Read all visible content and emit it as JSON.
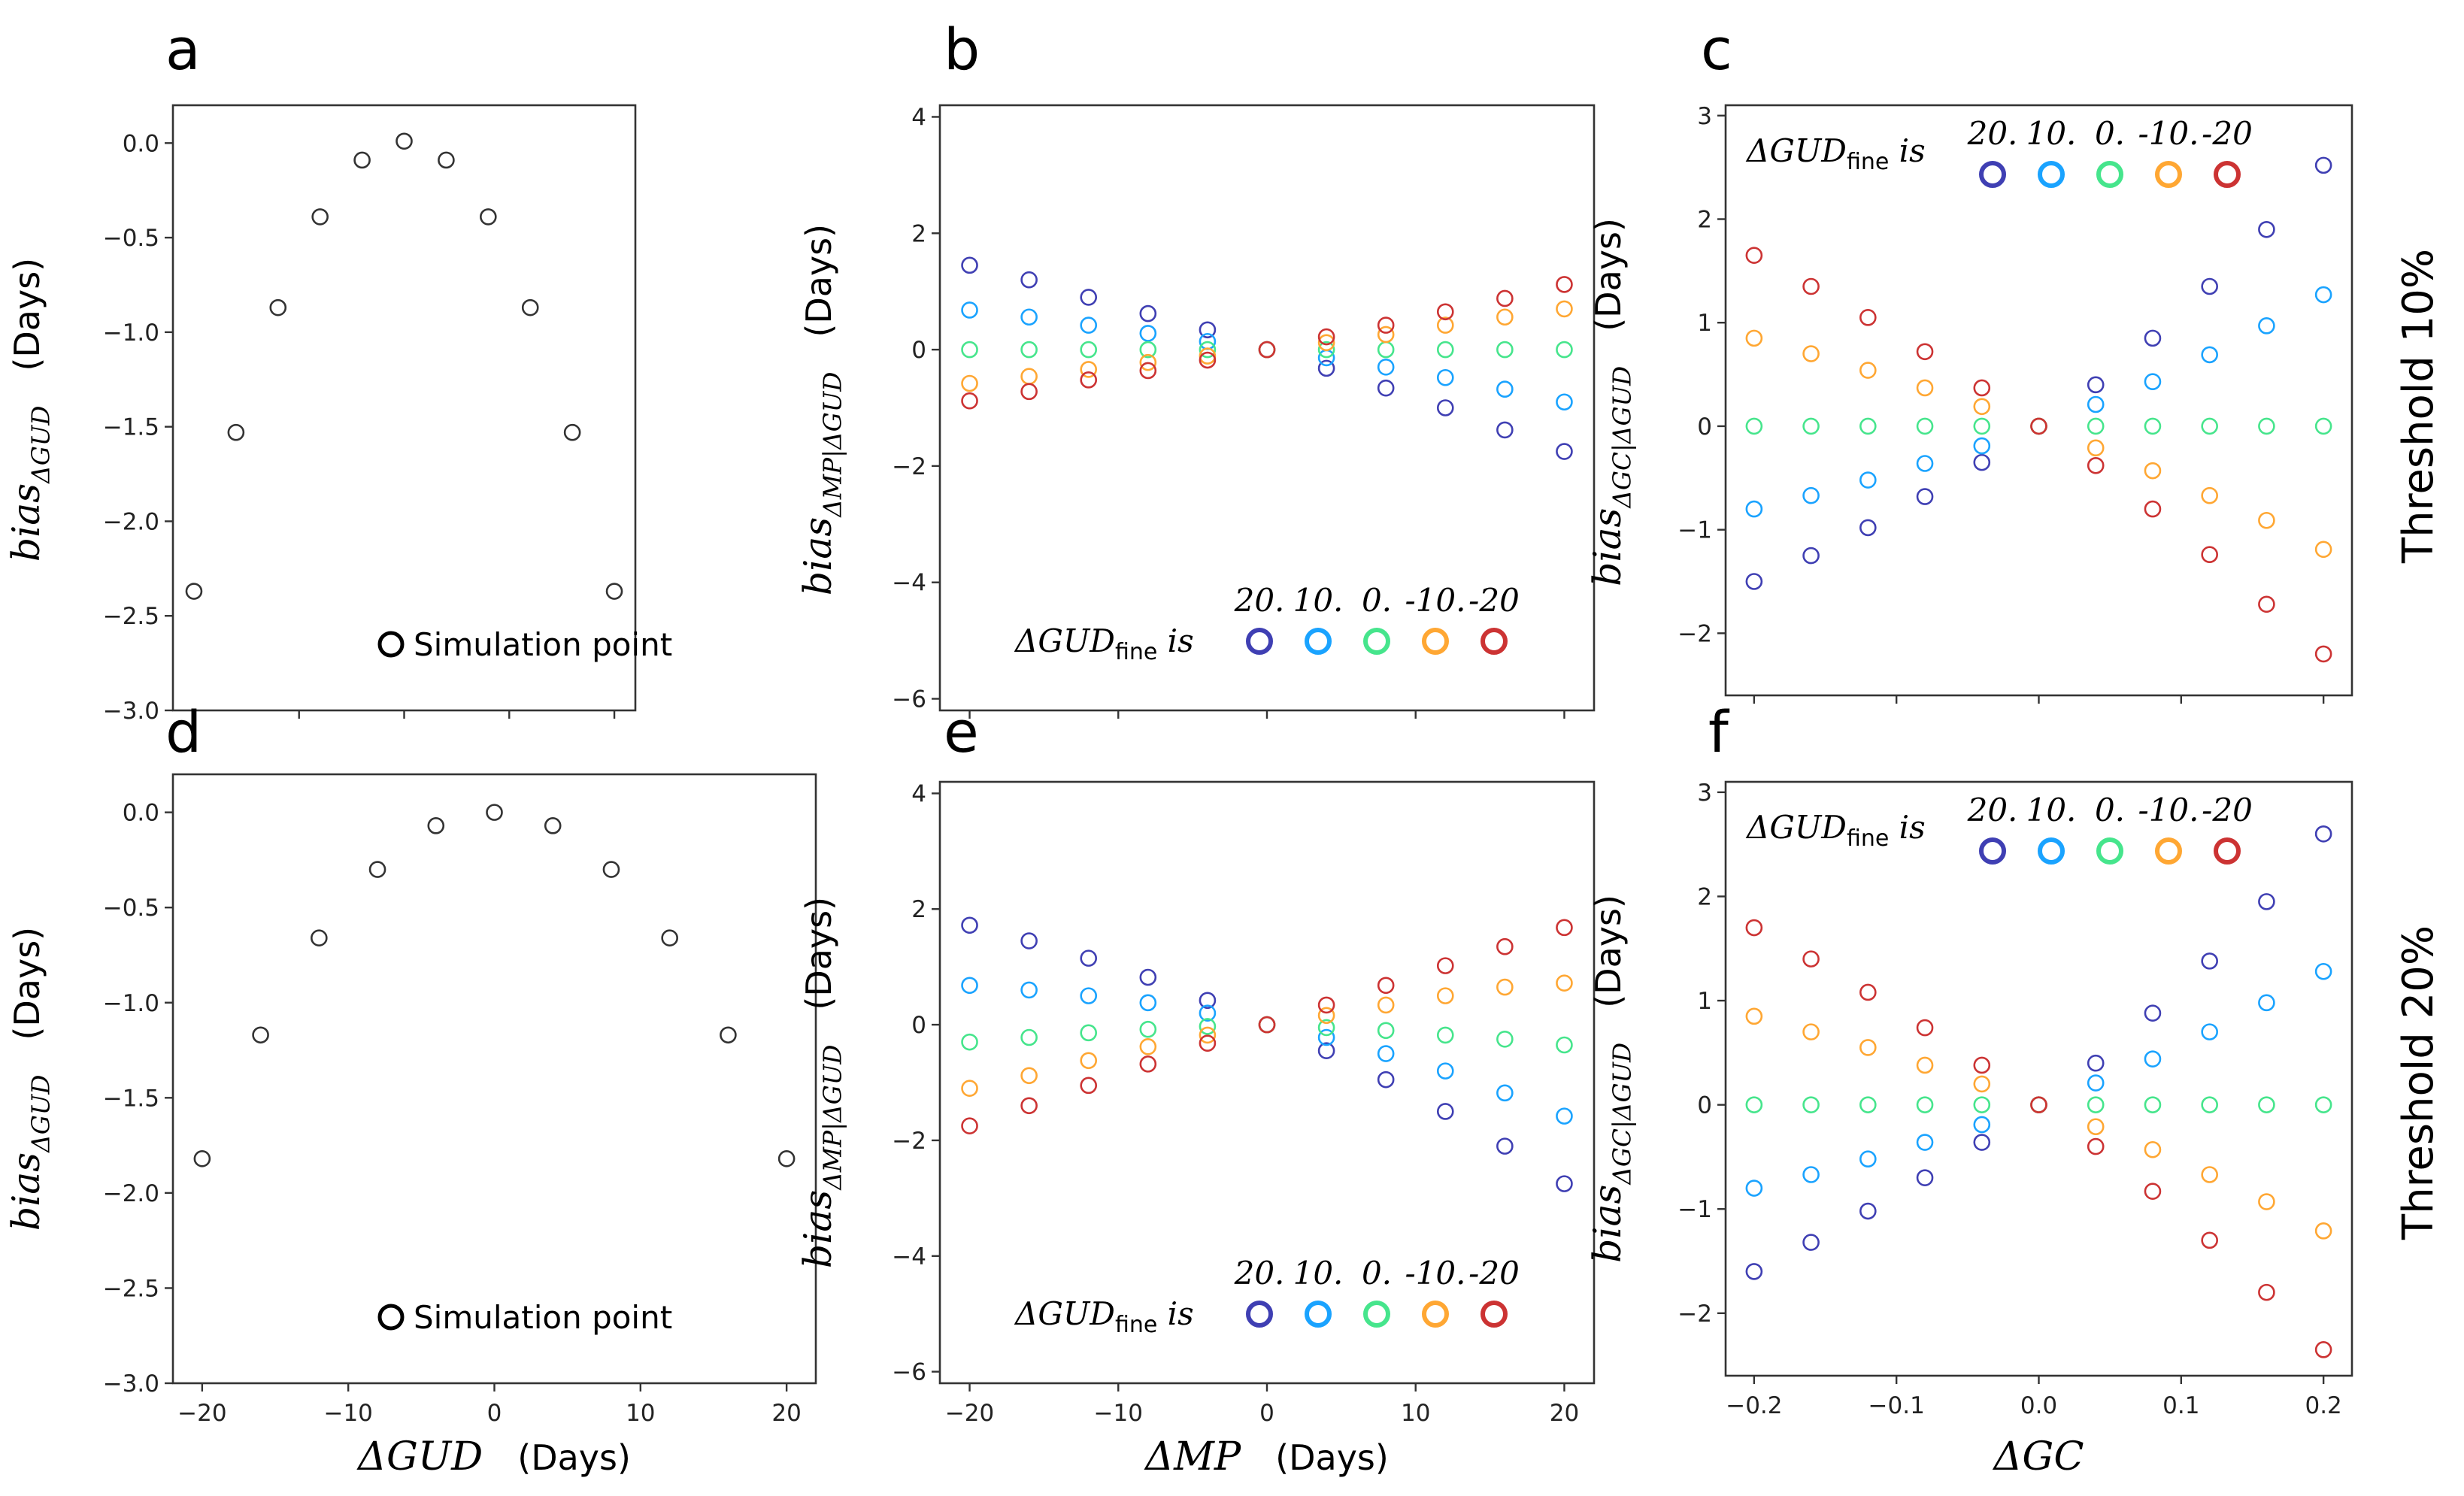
{
  "row_labels": [
    "Threshold 10%",
    "Threshold 20%"
  ],
  "colors": {
    "marker_black": "#333333",
    "gud_plus20": "#3f3fb3",
    "gud_plus10": "#1aa3ff",
    "gud_0": "#46e58c",
    "gud_minus10": "#ffa733",
    "gud_minus20": "#cc3333"
  },
  "legend": {
    "simulation": "Simulation point",
    "gud_fine_prefix": "ΔGUD",
    "gud_fine_sub": "fine",
    "gud_fine_suffix": " is",
    "gud_fine_values": [
      "20.",
      "10.",
      "0.",
      "-10.",
      "-20"
    ]
  },
  "chart_data": [
    {
      "panel": "a",
      "type": "scatter",
      "x": [
        -20,
        -16,
        -12,
        -8,
        -4,
        0,
        4,
        8,
        12,
        16,
        20
      ],
      "series": [
        {
          "name": "Simulation point",
          "values": [
            -2.37,
            -1.53,
            -0.87,
            -0.39,
            -0.09,
            0.01,
            -0.09,
            -0.39,
            -0.87,
            -1.53,
            -2.37
          ]
        }
      ],
      "xlim": [
        -22,
        22
      ],
      "ylim": [
        -3.0,
        0.2
      ],
      "xticks": [
        -20,
        -10,
        0,
        10,
        20
      ],
      "xtick_labels": [],
      "yticks": [
        0,
        -0.5,
        -1,
        -1.5,
        -2,
        -2.5,
        -3
      ],
      "ytick_labels": [
        "0.0",
        "−0.5",
        "−1.0",
        "−1.5",
        "−2.0",
        "−2.5",
        "−3.0"
      ],
      "ylabel": {
        "math": "bias",
        "sub": "ΔGUD",
        "units": "(Days)"
      },
      "xlabel": null
    },
    {
      "panel": "b",
      "type": "scatter",
      "x": [
        -20,
        -16,
        -12,
        -8,
        -4,
        0,
        4,
        8,
        12,
        16,
        20
      ],
      "series": [
        {
          "name": "20.",
          "values": [
            1.45,
            1.2,
            0.9,
            0.62,
            0.34,
            0.0,
            -0.32,
            -0.66,
            -1.0,
            -1.38,
            -1.75
          ]
        },
        {
          "name": "10.",
          "values": [
            0.68,
            0.56,
            0.42,
            0.28,
            0.14,
            0.0,
            -0.14,
            -0.3,
            -0.48,
            -0.68,
            -0.9
          ]
        },
        {
          "name": "0.",
          "values": [
            0.0,
            0.0,
            0.0,
            0.0,
            0.0,
            0.0,
            0.0,
            0.0,
            0.0,
            0.0,
            0.0
          ]
        },
        {
          "name": "-10.",
          "values": [
            -0.58,
            -0.46,
            -0.34,
            -0.22,
            -0.11,
            0.0,
            0.12,
            0.26,
            0.42,
            0.56,
            0.7
          ]
        },
        {
          "name": "-20",
          "values": [
            -0.88,
            -0.72,
            -0.52,
            -0.36,
            -0.18,
            0.0,
            0.22,
            0.42,
            0.65,
            0.88,
            1.12
          ]
        }
      ],
      "xlim": [
        -22,
        22
      ],
      "ylim": [
        -6.2,
        4.2
      ],
      "xticks": [
        -20,
        -10,
        0,
        10,
        20
      ],
      "xtick_labels": [],
      "yticks": [
        4,
        2,
        0,
        -2,
        -4,
        -6
      ],
      "ytick_labels": [
        "4",
        "2",
        "0",
        "−2",
        "−4",
        "−6"
      ],
      "ylabel": {
        "math": "bias",
        "sub": "ΔMP|ΔGUD",
        "units": "(Days)"
      },
      "xlabel": null,
      "legend_position": "bottom-right"
    },
    {
      "panel": "c",
      "type": "scatter",
      "x": [
        -0.2,
        -0.16,
        -0.12,
        -0.08,
        -0.04,
        0.0,
        0.04,
        0.08,
        0.12,
        0.16,
        0.2
      ],
      "series": [
        {
          "name": "20.",
          "values": [
            -1.5,
            -1.25,
            -0.98,
            -0.68,
            -0.35,
            0.0,
            0.4,
            0.85,
            1.35,
            1.9,
            2.52
          ]
        },
        {
          "name": "10.",
          "values": [
            -0.8,
            -0.67,
            -0.52,
            -0.36,
            -0.19,
            0.0,
            0.21,
            0.43,
            0.69,
            0.97,
            1.27
          ]
        },
        {
          "name": "0.",
          "values": [
            0.0,
            0.0,
            0.0,
            0.0,
            0.0,
            0.0,
            0.0,
            0.0,
            0.0,
            0.0,
            0.0
          ]
        },
        {
          "name": "-10.",
          "values": [
            0.85,
            0.7,
            0.54,
            0.37,
            0.19,
            0.0,
            -0.21,
            -0.43,
            -0.67,
            -0.91,
            -1.19
          ]
        },
        {
          "name": "-20",
          "values": [
            1.65,
            1.35,
            1.05,
            0.72,
            0.37,
            0.0,
            -0.38,
            -0.8,
            -1.24,
            -1.72,
            -2.2
          ]
        }
      ],
      "xlim": [
        -0.22,
        0.22
      ],
      "ylim": [
        -2.6,
        3.1
      ],
      "xticks": [
        -0.2,
        -0.1,
        0.0,
        0.1,
        0.2
      ],
      "xtick_labels": [],
      "yticks": [
        3,
        2,
        1,
        0,
        -1,
        -2
      ],
      "ytick_labels": [
        "3",
        "2",
        "1",
        "0",
        "−1",
        "−2"
      ],
      "ylabel": {
        "math": "bias",
        "sub": "ΔGC|ΔGUD",
        "units": "(Days)"
      },
      "xlabel": null,
      "legend_position": "top-left"
    },
    {
      "panel": "d",
      "type": "scatter",
      "x": [
        -20,
        -16,
        -12,
        -8,
        -4,
        0,
        4,
        8,
        12,
        16,
        20
      ],
      "series": [
        {
          "name": "Simulation point",
          "values": [
            -1.82,
            -1.17,
            -0.66,
            -0.3,
            -0.07,
            0.0,
            -0.07,
            -0.3,
            -0.66,
            -1.17,
            -1.82
          ]
        }
      ],
      "xlim": [
        -22,
        22
      ],
      "ylim": [
        -3.0,
        0.2
      ],
      "xticks": [
        -20,
        -10,
        0,
        10,
        20
      ],
      "xtick_labels": [
        "−20",
        "−10",
        "0",
        "10",
        "20"
      ],
      "yticks": [
        0,
        -0.5,
        -1,
        -1.5,
        -2,
        -2.5,
        -3
      ],
      "ytick_labels": [
        "0.0",
        "−0.5",
        "−1.0",
        "−1.5",
        "−2.0",
        "−2.5",
        "−3.0"
      ],
      "ylabel": {
        "math": "bias",
        "sub": "ΔGUD",
        "units": "(Days)"
      },
      "xlabel": {
        "math": "ΔGUD",
        "units": "(Days)"
      }
    },
    {
      "panel": "e",
      "type": "scatter",
      "x": [
        -20,
        -16,
        -12,
        -8,
        -4,
        0,
        4,
        8,
        12,
        16,
        20
      ],
      "series": [
        {
          "name": "20.",
          "values": [
            1.72,
            1.45,
            1.15,
            0.82,
            0.42,
            0.0,
            -0.45,
            -0.95,
            -1.5,
            -2.1,
            -2.75
          ]
        },
        {
          "name": "10.",
          "values": [
            0.68,
            0.6,
            0.5,
            0.38,
            0.2,
            0.0,
            -0.22,
            -0.5,
            -0.8,
            -1.18,
            -1.58
          ]
        },
        {
          "name": "0.",
          "values": [
            -0.3,
            -0.22,
            -0.14,
            -0.08,
            -0.03,
            0.0,
            -0.05,
            -0.1,
            -0.18,
            -0.25,
            -0.35
          ]
        },
        {
          "name": "-10.",
          "values": [
            -1.1,
            -0.88,
            -0.62,
            -0.38,
            -0.18,
            0.0,
            0.16,
            0.34,
            0.5,
            0.65,
            0.72
          ]
        },
        {
          "name": "-20",
          "values": [
            -1.75,
            -1.4,
            -1.05,
            -0.68,
            -0.32,
            0.0,
            0.34,
            0.68,
            1.02,
            1.35,
            1.68
          ]
        }
      ],
      "xlim": [
        -22,
        22
      ],
      "ylim": [
        -6.2,
        4.2
      ],
      "xticks": [
        -20,
        -10,
        0,
        10,
        20
      ],
      "xtick_labels": [
        "−20",
        "−10",
        "0",
        "10",
        "20"
      ],
      "yticks": [
        4,
        2,
        0,
        -2,
        -4,
        -6
      ],
      "ytick_labels": [
        "4",
        "2",
        "0",
        "−2",
        "−4",
        "−6"
      ],
      "ylabel": {
        "math": "bias",
        "sub": "ΔMP|ΔGUD",
        "units": "(Days)"
      },
      "xlabel": {
        "math": "ΔMP",
        "units": "(Days)"
      },
      "legend_position": "bottom-right"
    },
    {
      "panel": "f",
      "type": "scatter",
      "x": [
        -0.2,
        -0.16,
        -0.12,
        -0.08,
        -0.04,
        0.0,
        0.04,
        0.08,
        0.12,
        0.16,
        0.2
      ],
      "series": [
        {
          "name": "20.",
          "values": [
            -1.6,
            -1.32,
            -1.02,
            -0.7,
            -0.36,
            0.0,
            0.4,
            0.88,
            1.38,
            1.95,
            2.6
          ]
        },
        {
          "name": "10.",
          "values": [
            -0.8,
            -0.67,
            -0.52,
            -0.36,
            -0.19,
            0.0,
            0.21,
            0.44,
            0.7,
            0.98,
            1.28
          ]
        },
        {
          "name": "0.",
          "values": [
            0.0,
            0.0,
            0.0,
            0.0,
            0.0,
            0.0,
            0.0,
            0.0,
            0.0,
            0.0,
            0.0
          ]
        },
        {
          "name": "-10.",
          "values": [
            0.85,
            0.7,
            0.55,
            0.38,
            0.2,
            0.0,
            -0.21,
            -0.43,
            -0.67,
            -0.93,
            -1.21
          ]
        },
        {
          "name": "-20",
          "values": [
            1.7,
            1.4,
            1.08,
            0.74,
            0.38,
            0.0,
            -0.4,
            -0.83,
            -1.3,
            -1.8,
            -2.35
          ]
        }
      ],
      "xlim": [
        -0.22,
        0.22
      ],
      "ylim": [
        -2.6,
        3.1
      ],
      "xticks": [
        -0.2,
        -0.1,
        0.0,
        0.1,
        0.2
      ],
      "xtick_labels": [
        "−0.2",
        "−0.1",
        "0.0",
        "0.1",
        "0.2"
      ],
      "yticks": [
        3,
        2,
        1,
        0,
        -1,
        -2
      ],
      "ytick_labels": [
        "3",
        "2",
        "1",
        "0",
        "−1",
        "−2"
      ],
      "ylabel": {
        "math": "bias",
        "sub": "ΔGC|ΔGUD",
        "units": "(Days)"
      },
      "xlabel": {
        "math": "ΔGC",
        "units": ""
      },
      "legend_position": "top-left"
    }
  ]
}
